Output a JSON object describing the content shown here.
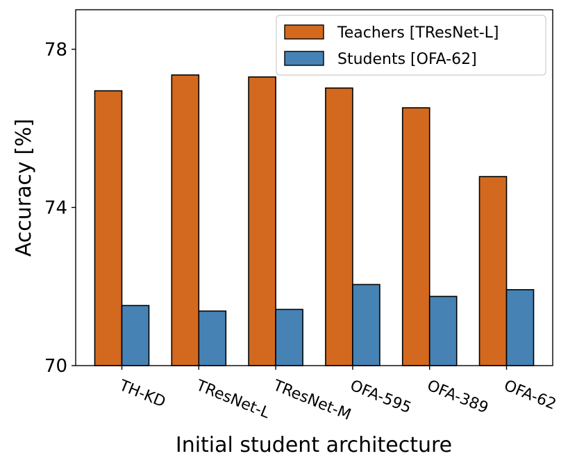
{
  "chart_data": {
    "type": "bar",
    "xlabel": "Initial student architecture",
    "ylabel": "Accuracy [%]",
    "ylim": [
      70,
      79
    ],
    "yticks": [
      70,
      74,
      78
    ],
    "categories": [
      "TH-KD",
      "TResNet-L",
      "TResNet-M",
      "OFA-595",
      "OFA-389",
      "OFA-62"
    ],
    "series": [
      {
        "name": "Teachers [TResNet-L]",
        "color": "#d2691e",
        "values": [
          76.95,
          77.35,
          77.3,
          77.02,
          76.52,
          74.78
        ]
      },
      {
        "name": "Students [OFA-62]",
        "color": "#4682b4",
        "values": [
          71.52,
          71.38,
          71.42,
          72.05,
          71.75,
          71.92
        ]
      }
    ],
    "legend_position": "top-right",
    "grid": false
  }
}
